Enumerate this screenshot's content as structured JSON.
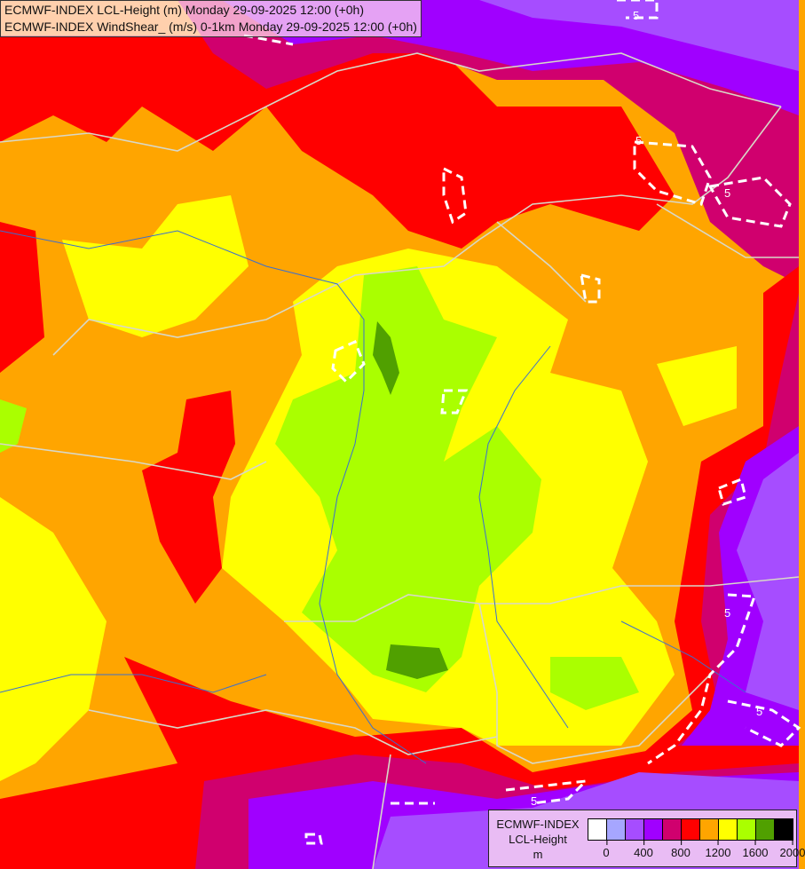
{
  "header": {
    "line1": "ECMWF-INDEX LCL-Height (m) Monday 29-09-2025 12:00 (+0h)",
    "line2": "ECMWF-INDEX WindShear_ (m/s) 0-1km Monday 29-09-2025 12:00 (+0h)"
  },
  "legend": {
    "source": "ECMWF-INDEX",
    "variable": "LCL-Height",
    "unit": "m",
    "colors": [
      "#ffffff",
      "#a6a6ff",
      "#a64dff",
      "#a000ff",
      "#d0006e",
      "#ff0000",
      "#ffa500",
      "#ffff00",
      "#aaff00",
      "#50a000",
      "#000000"
    ],
    "tick_labels": [
      "0",
      "400",
      "800",
      "1200",
      "1600",
      "2000"
    ]
  },
  "contours": {
    "windshear_label": "5",
    "style": "white-dashed"
  }
}
